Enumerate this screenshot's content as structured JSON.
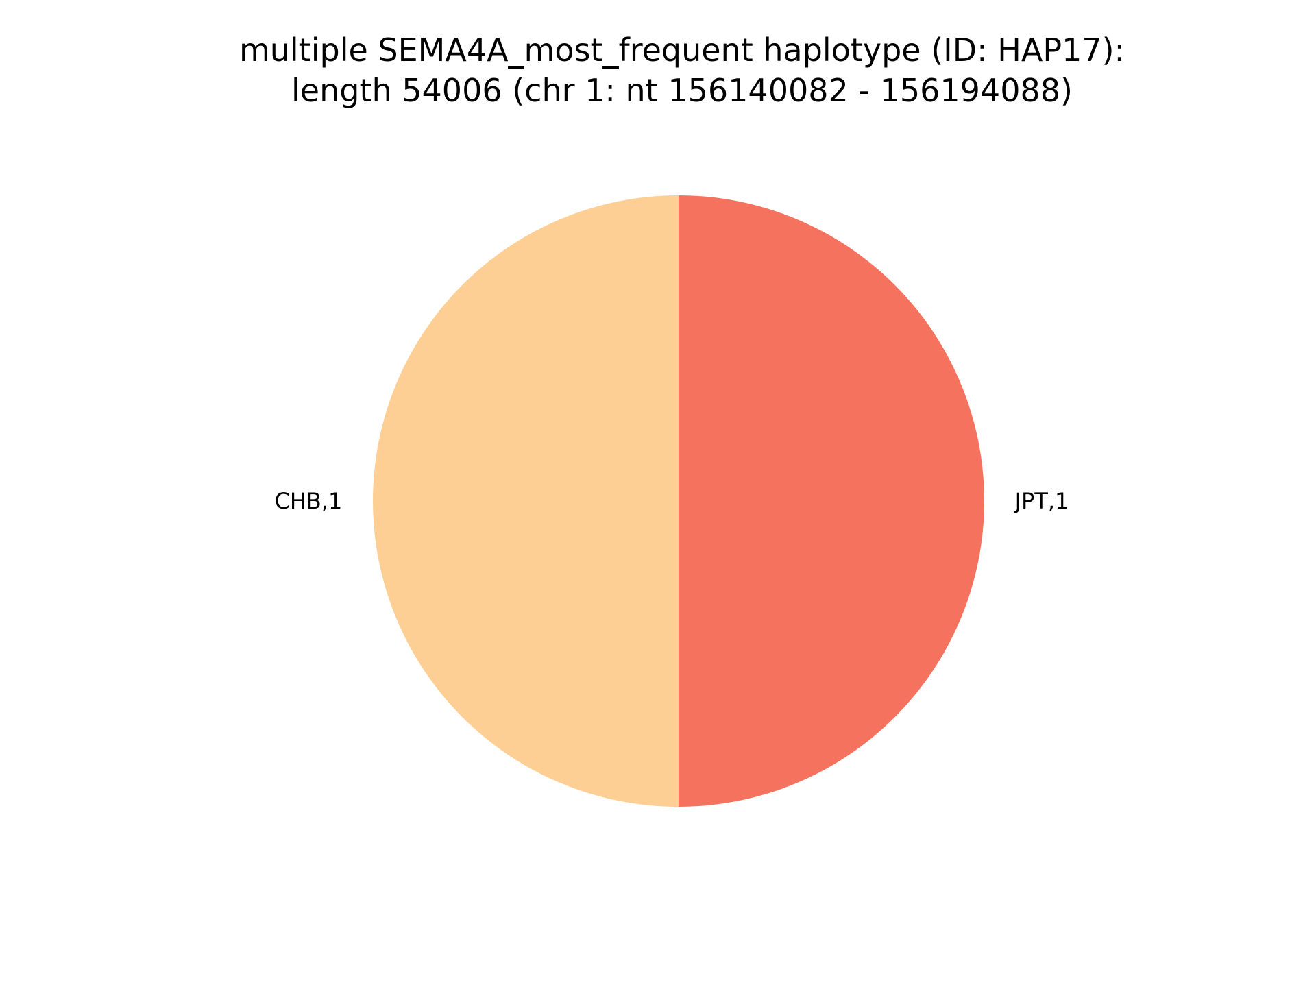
{
  "chart_data": {
    "type": "pie",
    "title_lines": [
      "multiple SEMA4A_most_frequent haplotype (ID: HAP17):",
      "length 54006 (chr 1: nt 156140082 - 156194088)"
    ],
    "start_angle_deg": 90,
    "direction": "counterclockwise",
    "slices": [
      {
        "label": "CHB,1",
        "value": 1,
        "color": "#fdcf94"
      },
      {
        "label": "JPT,1",
        "value": 1,
        "color": "#f5735e"
      }
    ]
  }
}
